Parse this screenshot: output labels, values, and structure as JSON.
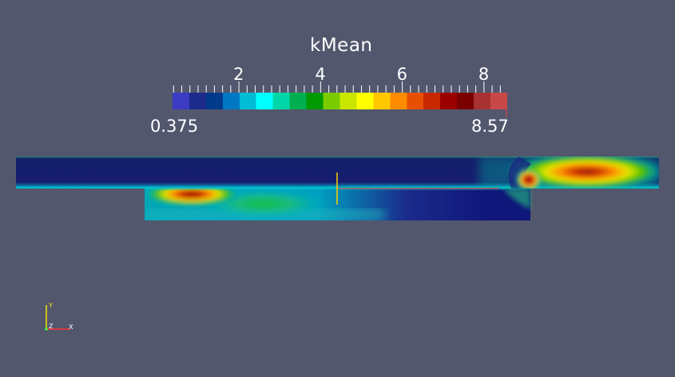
{
  "scalar_bar": {
    "title": "kMean",
    "min_label": "0.375",
    "max_label": "8.57",
    "range": [
      0.375,
      8.57
    ],
    "ticks": [
      {
        "value": 2,
        "label": "2"
      },
      {
        "value": 4,
        "label": "4"
      },
      {
        "value": 6,
        "label": "6"
      },
      {
        "value": 8,
        "label": "8"
      }
    ],
    "colormap": [
      "#3b3bc4",
      "#1c2b8c",
      "#003a8a",
      "#0078c4",
      "#00bcd4",
      "#00ffff",
      "#00d6a8",
      "#00b050",
      "#009900",
      "#7acc00",
      "#c8e600",
      "#ffff00",
      "#ffc800",
      "#ff8c00",
      "#e65000",
      "#c82800",
      "#9a0000",
      "#7a0000",
      "#a83232",
      "#c84848"
    ]
  },
  "orientation_axes": {
    "x": "X",
    "y": "Y",
    "z": "Z",
    "colors": {
      "x": "#ff3030",
      "y": "#ffe000",
      "z": "#40ff40"
    }
  },
  "colors": {
    "background": "#52576e"
  }
}
